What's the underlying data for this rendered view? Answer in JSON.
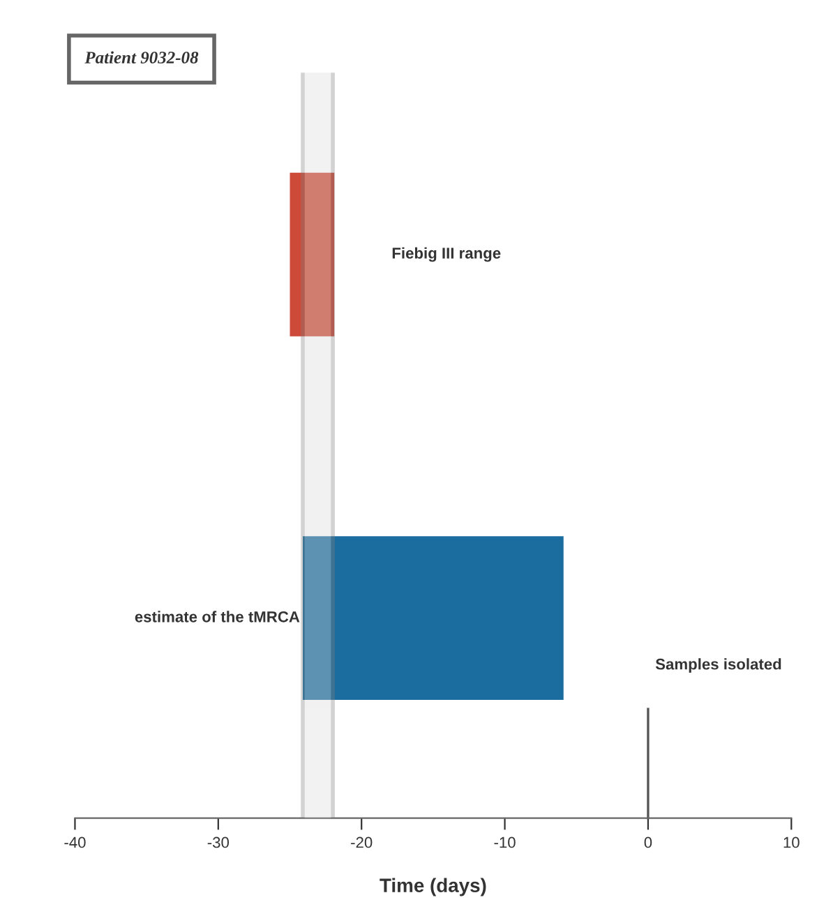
{
  "chart_data": {
    "type": "bar",
    "orientation": "horizontal",
    "title": "Patient 9032-08",
    "xlabel": "Time (days)",
    "categories": [
      "Fiebig III range",
      "estimate of the tMRCA"
    ],
    "base": [
      -25,
      -24.1
    ],
    "values": [
      3.1,
      18.2
    ],
    "colors": [
      "#cc4a37",
      "#1c6d9f"
    ],
    "xlim": [
      -40,
      10
    ],
    "xticks": [
      -40,
      -30,
      -20,
      -10,
      0,
      10
    ],
    "bands": [
      {
        "axis": "x",
        "from": -24.1,
        "to": -22,
        "color": "#d9d9d9"
      }
    ],
    "ref_lines": [
      {
        "axis": "x",
        "value": 0,
        "label": "Samples isolated",
        "color": "#555555"
      }
    ],
    "grid": false,
    "legend": false,
    "tick_labels": "x"
  }
}
